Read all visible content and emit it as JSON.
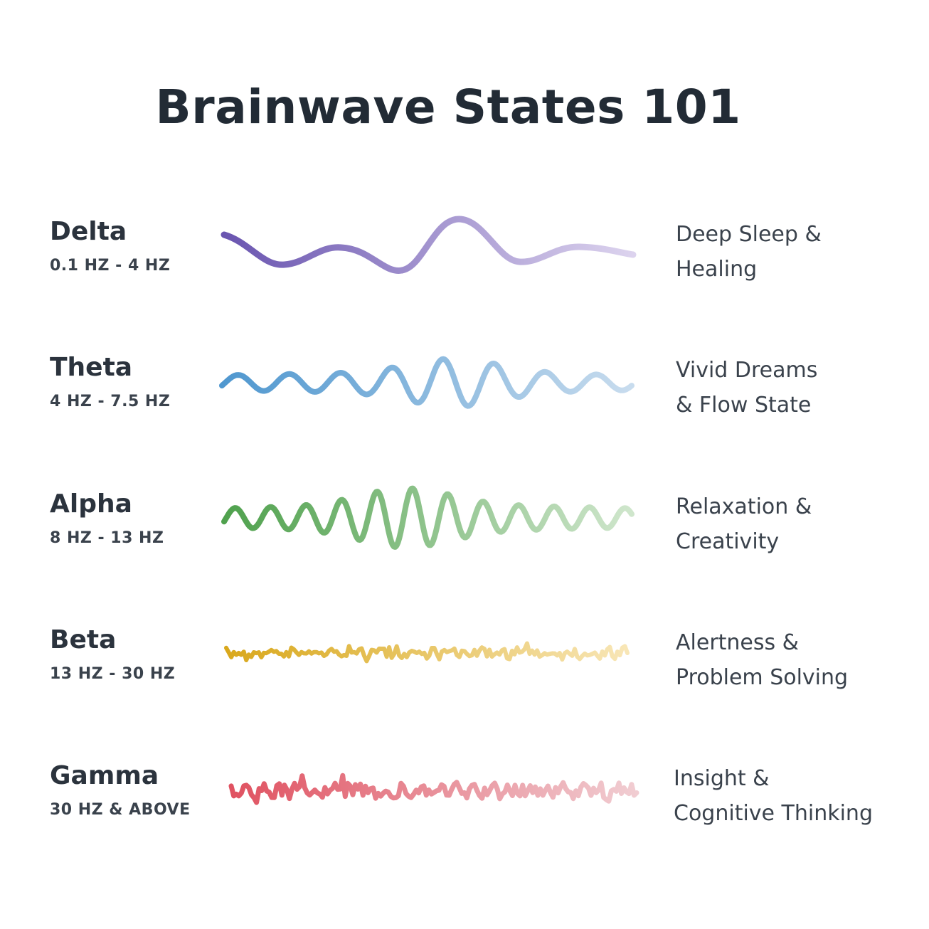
{
  "title": "Brainwave States 101",
  "states": [
    {
      "name": "Delta",
      "range": "0.1 HZ - 4 HZ",
      "desc_line1": "Deep Sleep &",
      "desc_line2": "Healing",
      "color_start": "#6a55b0",
      "color_end": "#dcd3ee"
    },
    {
      "name": "Theta",
      "range": "4 HZ - 7.5 HZ",
      "desc_line1": "Vivid Dreams",
      "desc_line2": "& Flow State",
      "color_start": "#4f97cf",
      "color_end": "#c8dcee"
    },
    {
      "name": "Alpha",
      "range": "8 HZ - 13 HZ",
      "desc_line1": "Relaxation &",
      "desc_line2": "Creativity",
      "color_start": "#4fa14d",
      "color_end": "#cfe6cc"
    },
    {
      "name": "Beta",
      "range": "13 HZ - 30 HZ",
      "desc_line1": "Alertness &",
      "desc_line2": "Problem Solving",
      "color_start": "#d9a81c",
      "color_end": "#f8e6b6"
    },
    {
      "name": "Gamma",
      "range": "30 HZ & ABOVE",
      "desc_line1": "Insight &",
      "desc_line2": "Cognitive Thinking",
      "color_start": "#e05261",
      "color_end": "#f1cdd2"
    }
  ]
}
